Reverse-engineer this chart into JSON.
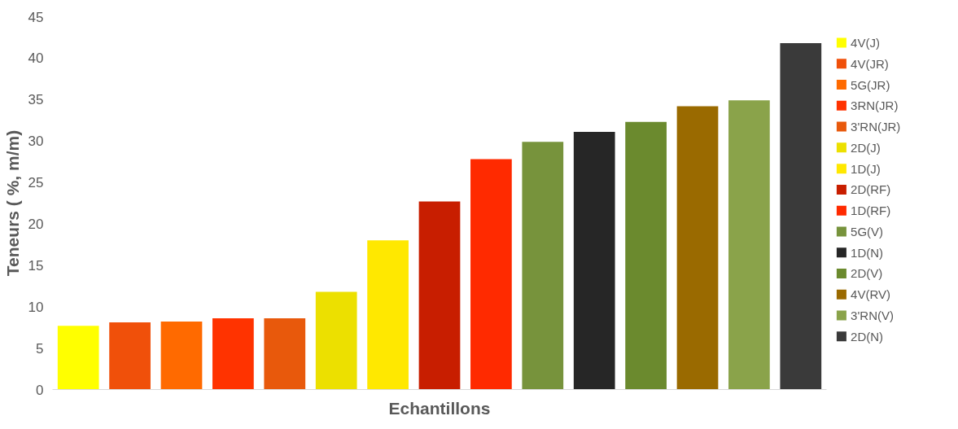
{
  "chart_data": {
    "type": "bar",
    "xlabel": "Echantillons",
    "ylabel": "Teneurs ( %, m/m)",
    "categories": [
      null,
      null,
      null,
      null,
      null,
      null,
      null,
      null,
      null,
      null,
      null,
      null,
      null,
      null,
      null
    ],
    "ylim": [
      0,
      45
    ],
    "yticks": [
      0,
      5,
      10,
      15,
      20,
      25,
      30,
      35,
      40,
      45
    ],
    "grid": false,
    "legend": "right",
    "tick_labels": "y",
    "series": [
      {
        "name": "4V(J)",
        "color": "#ffff00",
        "values": [
          7.7,
          null,
          null,
          null,
          null,
          null,
          null,
          null,
          null,
          null,
          null,
          null,
          null,
          null,
          null
        ]
      },
      {
        "name": "4V(JR)",
        "color": "#f0500a",
        "values": [
          null,
          8.1,
          null,
          null,
          null,
          null,
          null,
          null,
          null,
          null,
          null,
          null,
          null,
          null,
          null
        ]
      },
      {
        "name": "5G(JR)",
        "color": "#ff6a00",
        "values": [
          null,
          null,
          8.2,
          null,
          null,
          null,
          null,
          null,
          null,
          null,
          null,
          null,
          null,
          null,
          null
        ]
      },
      {
        "name": "3RN(JR)",
        "color": "#ff3300",
        "values": [
          null,
          null,
          null,
          8.6,
          null,
          null,
          null,
          null,
          null,
          null,
          null,
          null,
          null,
          null,
          null
        ]
      },
      {
        "name": "3'RN(JR)",
        "color": "#e8590c",
        "values": [
          null,
          null,
          null,
          null,
          8.6,
          null,
          null,
          null,
          null,
          null,
          null,
          null,
          null,
          null,
          null
        ]
      },
      {
        "name": "2D(J)",
        "color": "#ece000",
        "values": [
          null,
          null,
          null,
          null,
          null,
          11.8,
          null,
          null,
          null,
          null,
          null,
          null,
          null,
          null,
          null
        ]
      },
      {
        "name": "1D(J)",
        "color": "#ffe800",
        "values": [
          null,
          null,
          null,
          null,
          null,
          null,
          18.0,
          null,
          null,
          null,
          null,
          null,
          null,
          null,
          null
        ]
      },
      {
        "name": "2D(RF)",
        "color": "#c81e00",
        "values": [
          null,
          null,
          null,
          null,
          null,
          null,
          null,
          22.7,
          null,
          null,
          null,
          null,
          null,
          null,
          null
        ]
      },
      {
        "name": "1D(RF)",
        "color": "#ff2a00",
        "values": [
          null,
          null,
          null,
          null,
          null,
          null,
          null,
          null,
          27.8,
          null,
          null,
          null,
          null,
          null,
          null
        ]
      },
      {
        "name": "5G(V)",
        "color": "#77933c",
        "values": [
          null,
          null,
          null,
          null,
          null,
          null,
          null,
          null,
          null,
          29.9,
          null,
          null,
          null,
          null,
          null
        ]
      },
      {
        "name": "1D(N)",
        "color": "#262626",
        "values": [
          null,
          null,
          null,
          null,
          null,
          null,
          null,
          null,
          null,
          null,
          31.1,
          null,
          null,
          null,
          null
        ]
      },
      {
        "name": "2D(V)",
        "color": "#6b8a2e",
        "values": [
          null,
          null,
          null,
          null,
          null,
          null,
          null,
          null,
          null,
          null,
          null,
          32.3,
          null,
          null,
          null
        ]
      },
      {
        "name": "4V(RV)",
        "color": "#9a6a00",
        "values": [
          null,
          null,
          null,
          null,
          null,
          null,
          null,
          null,
          null,
          null,
          null,
          null,
          34.2,
          null,
          null
        ]
      },
      {
        "name": "3'RN(V)",
        "color": "#8aa34a",
        "values": [
          null,
          null,
          null,
          null,
          null,
          null,
          null,
          null,
          null,
          null,
          null,
          null,
          null,
          34.9,
          null
        ]
      },
      {
        "name": "2D(N)",
        "color": "#3a3a3a",
        "values": [
          null,
          null,
          null,
          null,
          null,
          null,
          null,
          null,
          null,
          null,
          null,
          null,
          null,
          null,
          41.8
        ]
      }
    ]
  }
}
